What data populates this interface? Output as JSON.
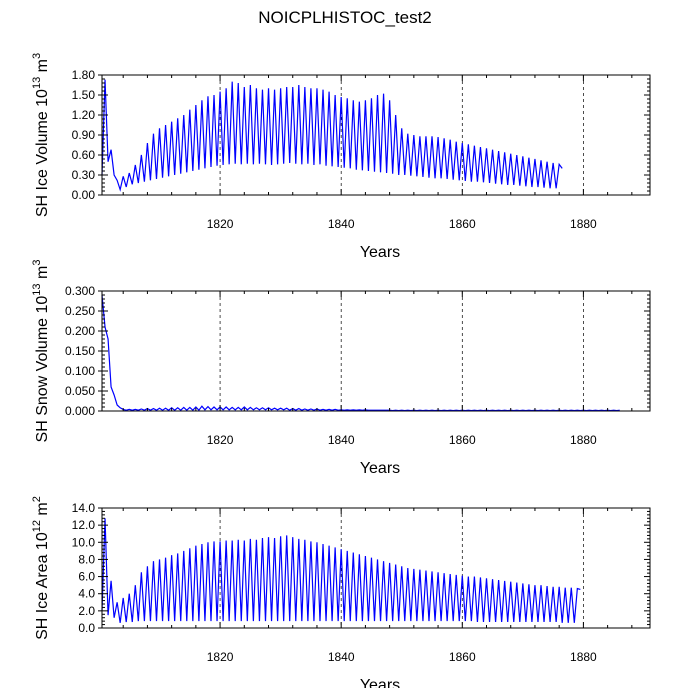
{
  "title": "NOICPLHISTOC_test2",
  "chart_data": [
    {
      "type": "line",
      "id": "ice-volume",
      "title": "NOICPLHISTOC_test2",
      "xlabel": "Years",
      "ylabel_main": "SH Ice Volume 10",
      "ylabel_exp": "13",
      "ylabel_unit": " m",
      "ylabel_unit_exp": "3",
      "xlim": [
        1800.5,
        1891
      ],
      "ylim": [
        0,
        1.8
      ],
      "xticks": [
        1820,
        1840,
        1860,
        1880
      ],
      "xtick_labels": [
        "1820",
        "1840",
        "1860",
        "1880"
      ],
      "yticks": [
        0,
        0.3,
        0.6,
        0.9,
        1.2,
        1.5,
        1.8
      ],
      "ytick_labels": [
        "0.00",
        "0.30",
        "0.60",
        "0.90",
        "1.20",
        "1.50",
        "1.80"
      ],
      "grid_x": true,
      "series": [
        {
          "name": "SH Ice Volume",
          "color": "#0000ff",
          "x_start": 1800.5,
          "x_step": 0.5,
          "values": [
            0.3,
            1.73,
            0.5,
            0.68,
            0.3,
            0.22,
            0.08,
            0.28,
            0.12,
            0.33,
            0.16,
            0.45,
            0.18,
            0.6,
            0.2,
            0.78,
            0.22,
            0.92,
            0.24,
            1.0,
            0.26,
            1.05,
            0.28,
            1.1,
            0.3,
            1.15,
            0.32,
            1.2,
            0.34,
            1.28,
            0.36,
            1.35,
            0.38,
            1.42,
            0.4,
            1.48,
            0.42,
            1.5,
            0.44,
            1.55,
            0.45,
            1.6,
            0.46,
            1.7,
            0.47,
            1.68,
            0.46,
            1.62,
            0.47,
            1.65,
            0.46,
            1.6,
            0.47,
            1.58,
            0.46,
            1.6,
            0.45,
            1.58,
            0.46,
            1.6,
            0.47,
            1.62,
            0.48,
            1.62,
            0.47,
            1.65,
            0.46,
            1.62,
            0.47,
            1.6,
            0.45,
            1.6,
            0.46,
            1.58,
            0.44,
            1.55,
            0.43,
            1.5,
            0.42,
            1.47,
            0.41,
            1.45,
            0.4,
            1.42,
            0.38,
            1.4,
            0.37,
            1.42,
            0.36,
            1.45,
            0.35,
            1.5,
            0.34,
            1.52,
            0.33,
            1.42,
            0.32,
            1.2,
            0.3,
            1.0,
            0.3,
            0.92,
            0.29,
            0.9,
            0.28,
            0.88,
            0.27,
            0.88,
            0.26,
            0.88,
            0.25,
            0.87,
            0.25,
            0.85,
            0.24,
            0.83,
            0.23,
            0.8,
            0.22,
            0.78,
            0.21,
            0.76,
            0.2,
            0.74,
            0.2,
            0.72,
            0.19,
            0.7,
            0.18,
            0.68,
            0.17,
            0.66,
            0.16,
            0.64,
            0.15,
            0.62,
            0.15,
            0.6,
            0.14,
            0.58,
            0.13,
            0.56,
            0.12,
            0.54,
            0.12,
            0.52,
            0.11,
            0.5,
            0.1,
            0.48,
            0.1,
            0.46,
            0.4
          ]
        }
      ]
    },
    {
      "type": "line",
      "id": "snow-volume",
      "xlabel": "Years",
      "ylabel_main": "SH Snow Volume 10",
      "ylabel_exp": "13",
      "ylabel_unit": " m",
      "ylabel_unit_exp": "3",
      "xlim": [
        1800.5,
        1891
      ],
      "ylim": [
        0,
        0.3
      ],
      "xticks": [
        1820,
        1840,
        1860,
        1880
      ],
      "xtick_labels": [
        "1820",
        "1840",
        "1860",
        "1880"
      ],
      "yticks": [
        0,
        0.05,
        0.1,
        0.15,
        0.2,
        0.25,
        0.3
      ],
      "ytick_labels": [
        "0.000",
        "0.050",
        "0.100",
        "0.150",
        "0.200",
        "0.250",
        "0.300"
      ],
      "grid_x": true,
      "series": [
        {
          "name": "SH Snow Volume",
          "color": "#0000ff",
          "x_start": 1800.5,
          "x_step": 0.5,
          "values": [
            0.29,
            0.21,
            0.18,
            0.06,
            0.04,
            0.015,
            0.008,
            0.004,
            0.002,
            0.004,
            0.002,
            0.004,
            0.002,
            0.005,
            0.002,
            0.006,
            0.002,
            0.006,
            0.002,
            0.007,
            0.002,
            0.007,
            0.002,
            0.008,
            0.002,
            0.008,
            0.002,
            0.009,
            0.002,
            0.009,
            0.002,
            0.01,
            0.002,
            0.012,
            0.003,
            0.011,
            0.003,
            0.01,
            0.003,
            0.01,
            0.003,
            0.01,
            0.003,
            0.009,
            0.003,
            0.009,
            0.003,
            0.01,
            0.003,
            0.009,
            0.003,
            0.008,
            0.003,
            0.008,
            0.003,
            0.008,
            0.003,
            0.007,
            0.003,
            0.007,
            0.003,
            0.007,
            0.002,
            0.006,
            0.002,
            0.006,
            0.002,
            0.005,
            0.002,
            0.005,
            0.002,
            0.005,
            0.002,
            0.004,
            0.002,
            0.004,
            0.002,
            0.004,
            0.002,
            0.003,
            0.002,
            0.003,
            0.002,
            0.003,
            0.002,
            0.003,
            0.002,
            0.003,
            0.002,
            0.002,
            0.002,
            0.002,
            0.002,
            0.002,
            0.002,
            0.002,
            0.001,
            0.002,
            0.001,
            0.002,
            0.001,
            0.002,
            0.001,
            0.002,
            0.001,
            0.002,
            0.001,
            0.002,
            0.001,
            0.002,
            0.001,
            0.002,
            0.001,
            0.002,
            0.001,
            0.002,
            0.001,
            0.002,
            0.001,
            0.002,
            0.001,
            0.002,
            0.001,
            0.002,
            0.001,
            0.002,
            0.001,
            0.002,
            0.001,
            0.002,
            0.001,
            0.002,
            0.001,
            0.002,
            0.001,
            0.002,
            0.001,
            0.002,
            0.001,
            0.002,
            0.001,
            0.002,
            0.001,
            0.002,
            0.001,
            0.002,
            0.001,
            0.002,
            0.001,
            0.002,
            0.001,
            0.002,
            0.001,
            0.002,
            0.001,
            0.002,
            0.001,
            0.002,
            0.001,
            0.002,
            0.001,
            0.002,
            0.001,
            0.002,
            0.001,
            0.002,
            0.001,
            0.002,
            0.001,
            0.002,
            0.001,
            0.002
          ]
        }
      ]
    },
    {
      "type": "line",
      "id": "ice-area",
      "xlabel": "Years",
      "ylabel_main": "SH Ice Area 10",
      "ylabel_exp": "12",
      "ylabel_unit": " m",
      "ylabel_unit_exp": "2",
      "xlim": [
        1800.5,
        1891
      ],
      "ylim": [
        0,
        14
      ],
      "xticks": [
        1820,
        1840,
        1860,
        1880
      ],
      "xtick_labels": [
        "1820",
        "1840",
        "1860",
        "1880"
      ],
      "yticks": [
        0,
        2,
        4,
        6,
        8,
        10,
        12,
        14
      ],
      "ytick_labels": [
        "0.0",
        "2.0",
        "4.0",
        "6.0",
        "8.0",
        "10.0",
        "12.0",
        "14.0"
      ],
      "grid_x": true,
      "series": [
        {
          "name": "SH Ice Area",
          "color": "#0000ff",
          "x_start": 1800.5,
          "x_step": 0.5,
          "values": [
            2.0,
            12.8,
            1.5,
            5.5,
            1.2,
            3.0,
            0.6,
            3.5,
            0.7,
            4.0,
            0.7,
            5.0,
            0.8,
            6.5,
            0.8,
            7.2,
            0.8,
            7.8,
            0.8,
            8.0,
            0.8,
            8.2,
            0.8,
            8.5,
            0.8,
            8.7,
            0.8,
            9.0,
            0.8,
            9.3,
            0.8,
            9.6,
            0.8,
            9.8,
            0.8,
            10.0,
            0.8,
            10.1,
            0.8,
            10.1,
            0.8,
            10.2,
            0.8,
            10.2,
            0.8,
            10.3,
            0.8,
            10.2,
            0.8,
            10.4,
            0.8,
            10.3,
            0.8,
            10.5,
            0.8,
            10.6,
            0.8,
            10.5,
            0.8,
            10.7,
            0.8,
            10.8,
            0.8,
            10.6,
            0.8,
            10.4,
            0.8,
            10.3,
            0.8,
            10.1,
            0.8,
            10.0,
            0.8,
            9.8,
            0.8,
            9.6,
            0.8,
            9.4,
            0.8,
            9.2,
            0.8,
            9.0,
            0.8,
            8.8,
            0.8,
            8.6,
            0.8,
            8.4,
            0.8,
            8.2,
            0.8,
            8.0,
            0.8,
            7.8,
            0.8,
            7.6,
            0.8,
            7.4,
            0.8,
            7.2,
            0.8,
            7.0,
            0.8,
            6.9,
            0.8,
            6.8,
            0.8,
            6.7,
            0.8,
            6.6,
            0.8,
            6.5,
            0.8,
            6.4,
            0.8,
            6.3,
            0.8,
            6.2,
            0.8,
            6.1,
            0.8,
            6.0,
            0.8,
            6.0,
            0.7,
            5.9,
            0.7,
            5.8,
            0.7,
            5.7,
            0.7,
            5.6,
            0.7,
            5.5,
            0.7,
            5.4,
            0.7,
            5.3,
            0.7,
            5.2,
            0.7,
            5.1,
            0.7,
            5.0,
            0.7,
            5.0,
            0.7,
            4.9,
            0.7,
            4.8,
            0.7,
            4.8,
            0.6,
            4.7,
            0.6,
            4.7,
            0.6,
            4.6,
            4.5
          ]
        }
      ]
    }
  ]
}
